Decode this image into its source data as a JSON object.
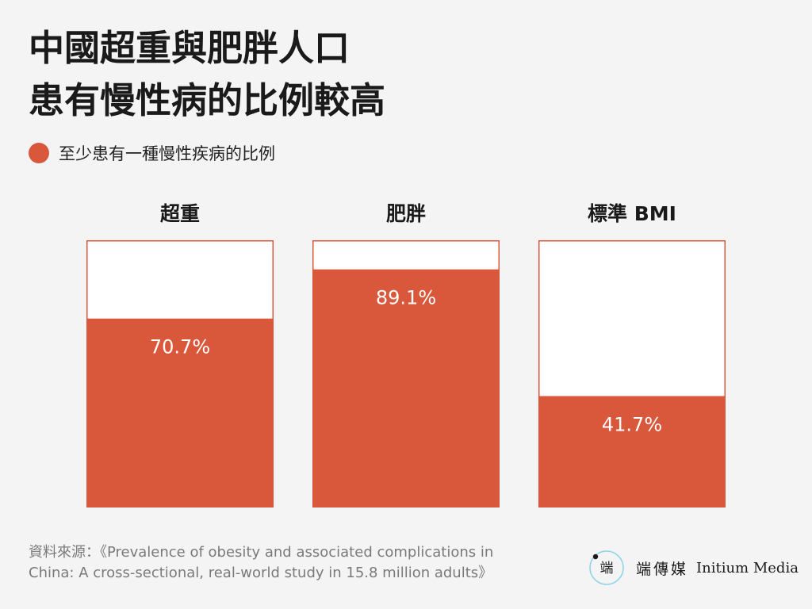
{
  "title_lines": [
    "中國超重與肥胖人口",
    "患有慢性病的比例較高"
  ],
  "colors": {
    "accent": "#d9573a",
    "frame": "#d9573a",
    "empty": "#ffffff",
    "background": "#f4f4f4",
    "logo_ring": "#8fd3e6"
  },
  "chart_data": {
    "type": "bar",
    "title": "中國超重與肥胖人口患有慢性病的比例較高",
    "legend": {
      "label": "至少患有一種慢性疾病的比例",
      "position": "top-left"
    },
    "categories": [
      "超重",
      "肥胖",
      "標準 BMI"
    ],
    "series": [
      {
        "name": "至少患有一種慢性疾病的比例",
        "values": [
          70.7,
          89.1,
          41.7
        ]
      }
    ],
    "value_labels": [
      "70.7%",
      "89.1%",
      "41.7%"
    ],
    "ylim": [
      0,
      100
    ],
    "unit": "%",
    "grid": false
  },
  "source": {
    "lines": [
      "資料來源：《Prevalence of obesity and associated complications in",
      "China: A cross-sectional, real-world study in 15.8 million adults》"
    ]
  },
  "brand": {
    "logo_icon": "initium-logo-icon",
    "logo_glyph": "端",
    "name_zh": "端傳媒",
    "name_en": "Initium Media"
  }
}
